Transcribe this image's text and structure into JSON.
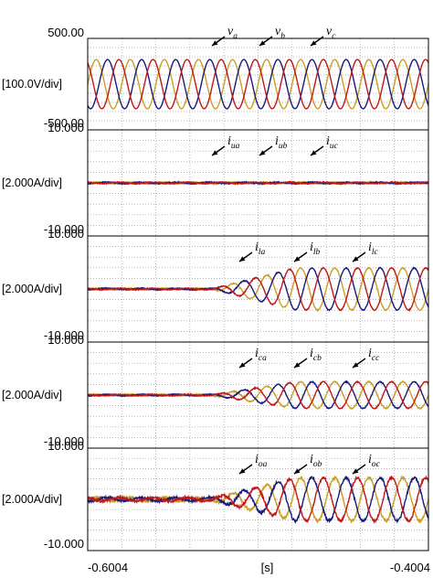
{
  "chart_data": {
    "type": "line",
    "xlabel": "[s]",
    "x_ticks": [
      "-0.6004",
      "-0.4004"
    ],
    "xlim": [
      -0.6004,
      -0.4004
    ],
    "colors": {
      "phase_a": "#c8a028",
      "phase_b": "#1a1a78",
      "phase_c": "#c01818"
    },
    "panels": [
      {
        "name": "grid-voltage",
        "y_top_label": "500.00",
        "y_bottom_label": "-500.00",
        "scale_label": "[100.0V/div]",
        "ylim": [
          -500,
          500
        ],
        "amplitude_start": 320,
        "amplitude_end": 320,
        "transition_x": [
          -0.6004,
          -0.6004
        ],
        "annotations": [
          {
            "letter": "v",
            "sub": "a"
          },
          {
            "letter": "v",
            "sub": "b"
          },
          {
            "letter": "v",
            "sub": "c"
          }
        ]
      },
      {
        "name": "current-u",
        "y_top_label": "10.000",
        "y_bottom_label": "-10.000",
        "scale_label": "[2.000A/div]",
        "ylim": [
          -10,
          10
        ],
        "amplitude_start": 0.15,
        "amplitude_end": 0.15,
        "transition_x": [
          -0.6004,
          -0.6004
        ],
        "annotations": [
          {
            "letter": "i",
            "sub": "ua"
          },
          {
            "letter": "i",
            "sub": "ub"
          },
          {
            "letter": "i",
            "sub": "uc"
          }
        ]
      },
      {
        "name": "current-l",
        "y_top_label": "10.000",
        "y_bottom_label": "-10.000",
        "scale_label": "[2.000A/div]",
        "ylim": [
          -10,
          10
        ],
        "amplitude_start": 0.15,
        "amplitude_end": 4.6,
        "transition_x": [
          -0.5264,
          -0.4784
        ],
        "annotations": [
          {
            "letter": "i",
            "sub": "la"
          },
          {
            "letter": "i",
            "sub": "lb"
          },
          {
            "letter": "i",
            "sub": "lc"
          }
        ]
      },
      {
        "name": "current-c",
        "y_top_label": "10.000",
        "y_bottom_label": "-10.000",
        "scale_label": "[2.000A/div]",
        "ylim": [
          -10,
          10
        ],
        "amplitude_start": 0.15,
        "amplitude_end": 2.9,
        "transition_x": [
          -0.5264,
          -0.4784
        ],
        "annotations": [
          {
            "letter": "i",
            "sub": "ca"
          },
          {
            "letter": "i",
            "sub": "cb"
          },
          {
            "letter": "i",
            "sub": "cc"
          }
        ]
      },
      {
        "name": "current-o",
        "y_top_label": "10.000",
        "y_bottom_label": "-10.000",
        "scale_label": "[2.000A/div]",
        "ylim": [
          -10,
          10
        ],
        "amplitude_start": 0.4,
        "amplitude_end": 4.9,
        "transition_x": [
          -0.5264,
          -0.4784
        ],
        "annotations": [
          {
            "letter": "i",
            "sub": "oa"
          },
          {
            "letter": "i",
            "sub": "ob"
          },
          {
            "letter": "i",
            "sub": "oc"
          }
        ]
      }
    ],
    "frequency_hz": 50,
    "grid": true
  }
}
